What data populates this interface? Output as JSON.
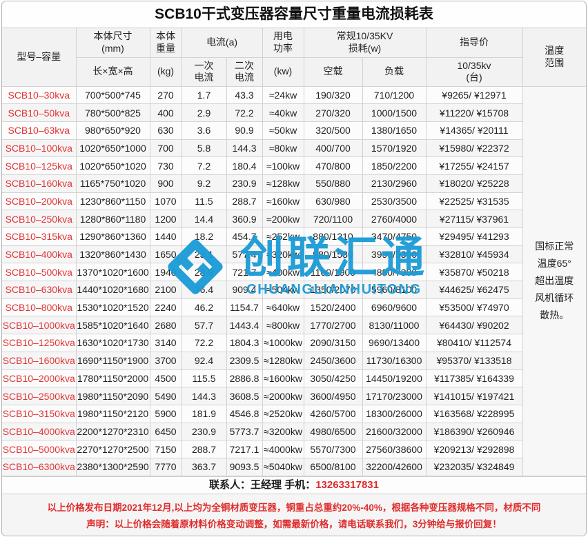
{
  "title": "SCB10干式变压器容量尺寸重量电流损耗表",
  "header": {
    "model": "型号–容量",
    "size1": "本体尺寸",
    "size2": "(mm)",
    "size_sub": "长×宽×高",
    "weight1": "本体",
    "weight2": "重量",
    "weight_sub": "(kg)",
    "current": "电流(a)",
    "cp1": "一次",
    "cp2": "电流",
    "cs1": "二次",
    "cs2": "电流",
    "power1": "用电",
    "power2": "功率",
    "power_sub": "(kw)",
    "loss1": "常规10/35KV",
    "loss2": "损耗(w)",
    "noload": "空载",
    "load": "负载",
    "price": "指导价",
    "price_sub1": "10/35kv",
    "price_sub2": "(台)",
    "temp1": "温度",
    "temp2": "范围"
  },
  "temperature_note": [
    "国标正常",
    "温度65°",
    "超出温度",
    "风机循环",
    "散热。"
  ],
  "rows": [
    {
      "model": "SCB10–30kva",
      "size": "700*500*745",
      "weight": "270",
      "i1": "1.7",
      "i2": "43.3",
      "power": "≈24kw",
      "noload": "190/320",
      "load": "710/1200",
      "price": "¥9265/ ¥12971"
    },
    {
      "model": "SCB10–50kva",
      "size": "780*500*825",
      "weight": "400",
      "i1": "2.9",
      "i2": "72.2",
      "power": "≈40kw",
      "noload": "270/320",
      "load": "1000/1500",
      "price": "¥11220/ ¥15708"
    },
    {
      "model": "SCB10–63kva",
      "size": "980*650*920",
      "weight": "630",
      "i1": "3.6",
      "i2": "90.9",
      "power": "≈50kw",
      "noload": "320/500",
      "load": "1380/1650",
      "price": "¥14365/ ¥20111"
    },
    {
      "model": "SCB10–100kva",
      "size": "1020*650*1000",
      "weight": "700",
      "i1": "5.8",
      "i2": "144.3",
      "power": "≈80kw",
      "noload": "400/700",
      "load": "1570/1920",
      "price": "¥15980/ ¥22372"
    },
    {
      "model": "SCB10–125kva",
      "size": "1020*650*1020",
      "weight": "730",
      "i1": "7.2",
      "i2": "180.4",
      "power": "≈100kw",
      "noload": "470/800",
      "load": "1850/2200",
      "price": "¥17255/ ¥24157"
    },
    {
      "model": "SCB10–160kva",
      "size": "1165*750*1020",
      "weight": "900",
      "i1": "9.2",
      "i2": "230.9",
      "power": "≈128kw",
      "noload": "550/880",
      "load": "2130/2960",
      "price": "¥18020/ ¥25228"
    },
    {
      "model": "SCB10–200kva",
      "size": "1230*860*1150",
      "weight": "1070",
      "i1": "11.5",
      "i2": "288.7",
      "power": "≈160kw",
      "noload": "630/980",
      "load": "2530/3500",
      "price": "¥22525/ ¥31535"
    },
    {
      "model": "SCB10–250kva",
      "size": "1280*860*1180",
      "weight": "1200",
      "i1": "14.4",
      "i2": "360.9",
      "power": "≈200kw",
      "noload": "720/1100",
      "load": "2760/4000",
      "price": "¥27115/ ¥37961"
    },
    {
      "model": "SCB10–315kva",
      "size": "1290*860*1360",
      "weight": "1440",
      "i1": "18.2",
      "i2": "454.7",
      "power": "≈252kw",
      "noload": "880/1310",
      "load": "3470/4750",
      "price": "¥29495/ ¥41293"
    },
    {
      "model": "SCB10–400kva",
      "size": "1320*860*1430",
      "weight": "1650",
      "i1": "23.1",
      "i2": "577.4",
      "power": "≈320kw",
      "noload": "980/1530",
      "load": "3990/5300",
      "price": "¥32810/ ¥45934"
    },
    {
      "model": "SCB10–500kva",
      "size": "1370*1020*1600",
      "weight": "1940",
      "i1": "28.9",
      "i2": "721.7",
      "power": "≈400kw",
      "noload": "1160/1900",
      "load": "4880/7300",
      "price": "¥35870/ ¥50218"
    },
    {
      "model": "SCB10–630kva",
      "size": "1440*1020*1680",
      "weight": "2100",
      "i1": "36.4",
      "i2": "909.4",
      "power": "≈504kw",
      "noload": "1350/2070",
      "load": "5960/8100",
      "price": "¥44625/ ¥62475"
    },
    {
      "model": "SCB10–800kva",
      "size": "1530*1020*1520",
      "weight": "2240",
      "i1": "46.2",
      "i2": "1154.7",
      "power": "≈640kw",
      "noload": "1520/2400",
      "load": "6960/9600",
      "price": "¥53500/ ¥74970"
    },
    {
      "model": "SCB10–1000kva",
      "size": "1585*1020*1640",
      "weight": "2680",
      "i1": "57.7",
      "i2": "1443.4",
      "power": "≈800kw",
      "noload": "1770/2700",
      "load": "8130/11000",
      "price": "¥64430/ ¥90202"
    },
    {
      "model": "SCB10–1250kva",
      "size": "1630*1020*1730",
      "weight": "3140",
      "i1": "72.2",
      "i2": "1804.3",
      "power": "≈1000kw",
      "noload": "2090/3150",
      "load": "9690/13400",
      "price": "¥80410/ ¥112574"
    },
    {
      "model": "SCB10–1600kva",
      "size": "1690*1150*1900",
      "weight": "3700",
      "i1": "92.4",
      "i2": "2309.5",
      "power": "≈1280kw",
      "noload": "2450/3600",
      "load": "11730/16300",
      "price": "¥95370/ ¥133518"
    },
    {
      "model": "SCB10–2000kva",
      "size": "1780*1150*2000",
      "weight": "4500",
      "i1": "115.5",
      "i2": "2886.8",
      "power": "≈1600kw",
      "noload": "3050/4250",
      "load": "14450/19200",
      "price": "¥117385/ ¥164339"
    },
    {
      "model": "SCB10–2500kva",
      "size": "1980*1150*2090",
      "weight": "5490",
      "i1": "144.3",
      "i2": "3608.5",
      "power": "≈2000kw",
      "noload": "3600/4950",
      "load": "17170/23000",
      "price": "¥141015/ ¥197421"
    },
    {
      "model": "SCB10–3150kva",
      "size": "1980*1150*2120",
      "weight": "5900",
      "i1": "181.9",
      "i2": "4546.8",
      "power": "≈2520kw",
      "noload": "4260/5700",
      "load": "18300/26000",
      "price": "¥163568/ ¥228995"
    },
    {
      "model": "SCB10–4000kva",
      "size": "2200*1270*2310",
      "weight": "6450",
      "i1": "230.9",
      "i2": "5773.7",
      "power": "≈3200kw",
      "noload": "4980/6500",
      "load": "21600/32000",
      "price": "¥186390/ ¥260946"
    },
    {
      "model": "SCB10–5000kva",
      "size": "2270*1270*2500",
      "weight": "7150",
      "i1": "288.7",
      "i2": "7217.1",
      "power": "≈4000kw",
      "noload": "5570/7300",
      "load": "27560/38600",
      "price": "¥209213/ ¥292898"
    },
    {
      "model": "SCB10–6300kva",
      "size": "2380*1300*2590",
      "weight": "7770",
      "i1": "363.7",
      "i2": "9093.5",
      "power": "≈5040kw",
      "noload": "6500/8100",
      "load": "32200/42600",
      "price": "¥232035/ ¥324849"
    }
  ],
  "watermark": {
    "cn": "创联汇通",
    "en": "CHUANGLIANHUITONG",
    "color": "#1a9bd7"
  },
  "footer": {
    "contact_label": "联系人：王经理  手机：",
    "phone": "13263317831",
    "notice_line1": "以上价格发布日期2021年12月,以上均为全铜材质变压器，铜重占总重约20%-40%，根据各种变压器规格不同，材质不同",
    "notice_line2": "声明：以上价格会随着原材料价格变动调整，如需最新价格，请电话联系我们，3分钟给与报价回复！"
  },
  "colors": {
    "accent_red": "#e23434",
    "watermark_blue": "#1a9bd7",
    "border_gray": "#d2d2d2"
  }
}
